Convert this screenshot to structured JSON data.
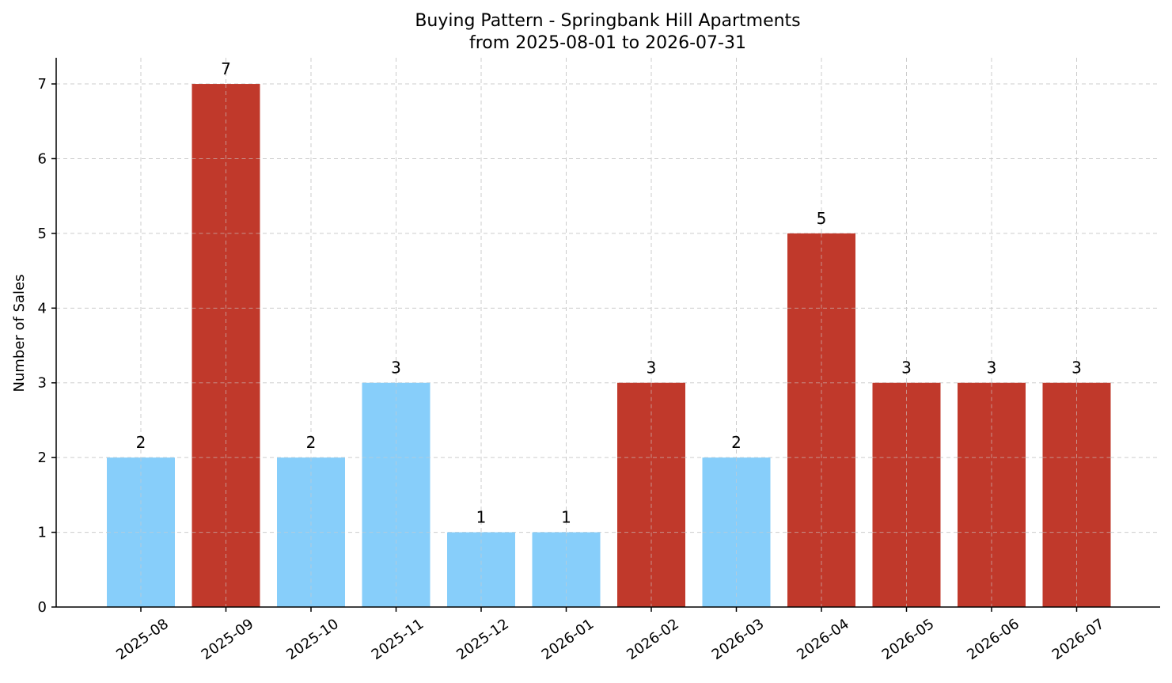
{
  "chart_data": {
    "type": "bar",
    "title_lines": [
      "Buying Pattern - Springbank Hill Apartments",
      "from 2025-08-01 to 2026-07-31"
    ],
    "xlabel": "",
    "ylabel": "Number of Sales",
    "categories": [
      "2025-08",
      "2025-09",
      "2025-10",
      "2025-11",
      "2025-12",
      "2026-01",
      "2026-02",
      "2026-03",
      "2026-04",
      "2026-05",
      "2026-06",
      "2026-07"
    ],
    "values": [
      2,
      7,
      2,
      3,
      1,
      1,
      3,
      2,
      5,
      3,
      3,
      3
    ],
    "bar_colors": [
      "#87CEFA",
      "#C0392B",
      "#87CEFA",
      "#87CEFA",
      "#87CEFA",
      "#87CEFA",
      "#C0392B",
      "#87CEFA",
      "#C0392B",
      "#C0392B",
      "#C0392B",
      "#C0392B"
    ],
    "ylim": [
      0,
      7.35
    ],
    "yticks": [
      0,
      1,
      2,
      3,
      4,
      5,
      6,
      7
    ],
    "grid": true,
    "legend": "none"
  }
}
